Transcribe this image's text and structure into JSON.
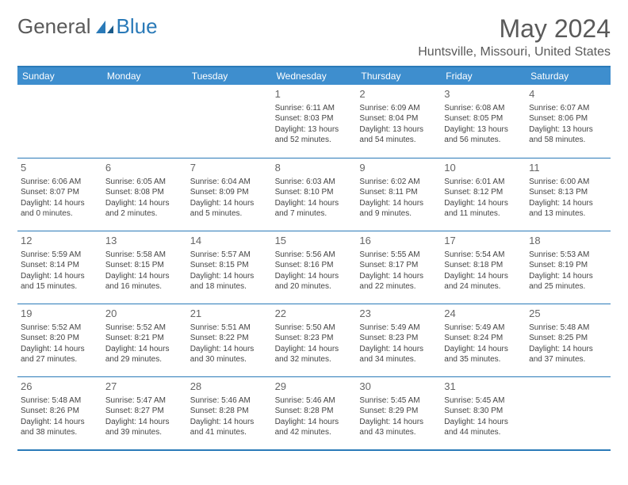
{
  "logo": {
    "general": "General",
    "blue": "Blue"
  },
  "title": "May 2024",
  "location": "Huntsville, Missouri, United States",
  "colors": {
    "header_bg": "#3e8ece",
    "header_text": "#ffffff",
    "border": "#2a7ab8",
    "logo_gray": "#5a5a5a",
    "logo_blue": "#2a7ab8",
    "text": "#444444",
    "daynum": "#666666"
  },
  "day_headers": [
    "Sunday",
    "Monday",
    "Tuesday",
    "Wednesday",
    "Thursday",
    "Friday",
    "Saturday"
  ],
  "weeks": [
    [
      {
        "day": "",
        "sunrise": "",
        "sunset": "",
        "daylight1": "",
        "daylight2": ""
      },
      {
        "day": "",
        "sunrise": "",
        "sunset": "",
        "daylight1": "",
        "daylight2": ""
      },
      {
        "day": "",
        "sunrise": "",
        "sunset": "",
        "daylight1": "",
        "daylight2": ""
      },
      {
        "day": "1",
        "sunrise": "Sunrise: 6:11 AM",
        "sunset": "Sunset: 8:03 PM",
        "daylight1": "Daylight: 13 hours",
        "daylight2": "and 52 minutes."
      },
      {
        "day": "2",
        "sunrise": "Sunrise: 6:09 AM",
        "sunset": "Sunset: 8:04 PM",
        "daylight1": "Daylight: 13 hours",
        "daylight2": "and 54 minutes."
      },
      {
        "day": "3",
        "sunrise": "Sunrise: 6:08 AM",
        "sunset": "Sunset: 8:05 PM",
        "daylight1": "Daylight: 13 hours",
        "daylight2": "and 56 minutes."
      },
      {
        "day": "4",
        "sunrise": "Sunrise: 6:07 AM",
        "sunset": "Sunset: 8:06 PM",
        "daylight1": "Daylight: 13 hours",
        "daylight2": "and 58 minutes."
      }
    ],
    [
      {
        "day": "5",
        "sunrise": "Sunrise: 6:06 AM",
        "sunset": "Sunset: 8:07 PM",
        "daylight1": "Daylight: 14 hours",
        "daylight2": "and 0 minutes."
      },
      {
        "day": "6",
        "sunrise": "Sunrise: 6:05 AM",
        "sunset": "Sunset: 8:08 PM",
        "daylight1": "Daylight: 14 hours",
        "daylight2": "and 2 minutes."
      },
      {
        "day": "7",
        "sunrise": "Sunrise: 6:04 AM",
        "sunset": "Sunset: 8:09 PM",
        "daylight1": "Daylight: 14 hours",
        "daylight2": "and 5 minutes."
      },
      {
        "day": "8",
        "sunrise": "Sunrise: 6:03 AM",
        "sunset": "Sunset: 8:10 PM",
        "daylight1": "Daylight: 14 hours",
        "daylight2": "and 7 minutes."
      },
      {
        "day": "9",
        "sunrise": "Sunrise: 6:02 AM",
        "sunset": "Sunset: 8:11 PM",
        "daylight1": "Daylight: 14 hours",
        "daylight2": "and 9 minutes."
      },
      {
        "day": "10",
        "sunrise": "Sunrise: 6:01 AM",
        "sunset": "Sunset: 8:12 PM",
        "daylight1": "Daylight: 14 hours",
        "daylight2": "and 11 minutes."
      },
      {
        "day": "11",
        "sunrise": "Sunrise: 6:00 AM",
        "sunset": "Sunset: 8:13 PM",
        "daylight1": "Daylight: 14 hours",
        "daylight2": "and 13 minutes."
      }
    ],
    [
      {
        "day": "12",
        "sunrise": "Sunrise: 5:59 AM",
        "sunset": "Sunset: 8:14 PM",
        "daylight1": "Daylight: 14 hours",
        "daylight2": "and 15 minutes."
      },
      {
        "day": "13",
        "sunrise": "Sunrise: 5:58 AM",
        "sunset": "Sunset: 8:15 PM",
        "daylight1": "Daylight: 14 hours",
        "daylight2": "and 16 minutes."
      },
      {
        "day": "14",
        "sunrise": "Sunrise: 5:57 AM",
        "sunset": "Sunset: 8:15 PM",
        "daylight1": "Daylight: 14 hours",
        "daylight2": "and 18 minutes."
      },
      {
        "day": "15",
        "sunrise": "Sunrise: 5:56 AM",
        "sunset": "Sunset: 8:16 PM",
        "daylight1": "Daylight: 14 hours",
        "daylight2": "and 20 minutes."
      },
      {
        "day": "16",
        "sunrise": "Sunrise: 5:55 AM",
        "sunset": "Sunset: 8:17 PM",
        "daylight1": "Daylight: 14 hours",
        "daylight2": "and 22 minutes."
      },
      {
        "day": "17",
        "sunrise": "Sunrise: 5:54 AM",
        "sunset": "Sunset: 8:18 PM",
        "daylight1": "Daylight: 14 hours",
        "daylight2": "and 24 minutes."
      },
      {
        "day": "18",
        "sunrise": "Sunrise: 5:53 AM",
        "sunset": "Sunset: 8:19 PM",
        "daylight1": "Daylight: 14 hours",
        "daylight2": "and 25 minutes."
      }
    ],
    [
      {
        "day": "19",
        "sunrise": "Sunrise: 5:52 AM",
        "sunset": "Sunset: 8:20 PM",
        "daylight1": "Daylight: 14 hours",
        "daylight2": "and 27 minutes."
      },
      {
        "day": "20",
        "sunrise": "Sunrise: 5:52 AM",
        "sunset": "Sunset: 8:21 PM",
        "daylight1": "Daylight: 14 hours",
        "daylight2": "and 29 minutes."
      },
      {
        "day": "21",
        "sunrise": "Sunrise: 5:51 AM",
        "sunset": "Sunset: 8:22 PM",
        "daylight1": "Daylight: 14 hours",
        "daylight2": "and 30 minutes."
      },
      {
        "day": "22",
        "sunrise": "Sunrise: 5:50 AM",
        "sunset": "Sunset: 8:23 PM",
        "daylight1": "Daylight: 14 hours",
        "daylight2": "and 32 minutes."
      },
      {
        "day": "23",
        "sunrise": "Sunrise: 5:49 AM",
        "sunset": "Sunset: 8:23 PM",
        "daylight1": "Daylight: 14 hours",
        "daylight2": "and 34 minutes."
      },
      {
        "day": "24",
        "sunrise": "Sunrise: 5:49 AM",
        "sunset": "Sunset: 8:24 PM",
        "daylight1": "Daylight: 14 hours",
        "daylight2": "and 35 minutes."
      },
      {
        "day": "25",
        "sunrise": "Sunrise: 5:48 AM",
        "sunset": "Sunset: 8:25 PM",
        "daylight1": "Daylight: 14 hours",
        "daylight2": "and 37 minutes."
      }
    ],
    [
      {
        "day": "26",
        "sunrise": "Sunrise: 5:48 AM",
        "sunset": "Sunset: 8:26 PM",
        "daylight1": "Daylight: 14 hours",
        "daylight2": "and 38 minutes."
      },
      {
        "day": "27",
        "sunrise": "Sunrise: 5:47 AM",
        "sunset": "Sunset: 8:27 PM",
        "daylight1": "Daylight: 14 hours",
        "daylight2": "and 39 minutes."
      },
      {
        "day": "28",
        "sunrise": "Sunrise: 5:46 AM",
        "sunset": "Sunset: 8:28 PM",
        "daylight1": "Daylight: 14 hours",
        "daylight2": "and 41 minutes."
      },
      {
        "day": "29",
        "sunrise": "Sunrise: 5:46 AM",
        "sunset": "Sunset: 8:28 PM",
        "daylight1": "Daylight: 14 hours",
        "daylight2": "and 42 minutes."
      },
      {
        "day": "30",
        "sunrise": "Sunrise: 5:45 AM",
        "sunset": "Sunset: 8:29 PM",
        "daylight1": "Daylight: 14 hours",
        "daylight2": "and 43 minutes."
      },
      {
        "day": "31",
        "sunrise": "Sunrise: 5:45 AM",
        "sunset": "Sunset: 8:30 PM",
        "daylight1": "Daylight: 14 hours",
        "daylight2": "and 44 minutes."
      },
      {
        "day": "",
        "sunrise": "",
        "sunset": "",
        "daylight1": "",
        "daylight2": ""
      }
    ]
  ]
}
